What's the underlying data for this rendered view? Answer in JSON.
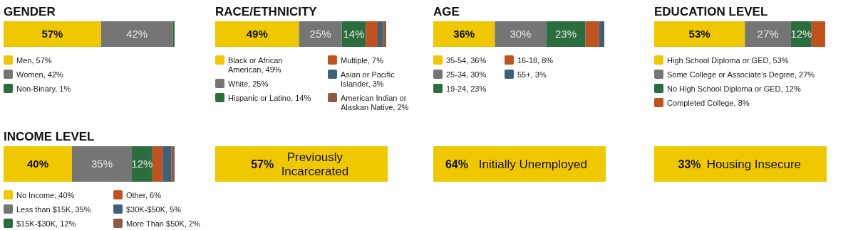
{
  "chart_data": [
    {
      "type": "bar",
      "orientation": "horizontal",
      "stacked": true,
      "title": "GENDER",
      "categories": [
        null
      ],
      "xlim": [
        0,
        100
      ],
      "legend": "bottom",
      "series": [
        {
          "name": "Men, 57%",
          "color": "#f0c800",
          "values": [
            57
          ],
          "value_labels": [
            "57%"
          ]
        },
        {
          "name": "Women, 42%",
          "color": "#757575",
          "values": [
            42
          ],
          "value_labels": [
            "42%"
          ]
        },
        {
          "name": "Non-Binary, 1%",
          "color": "#2a6e3f",
          "values": [
            1
          ],
          "value_labels": [
            null
          ]
        }
      ]
    },
    {
      "type": "bar",
      "orientation": "horizontal",
      "stacked": true,
      "title": "RACE/ETHNICITY",
      "categories": [
        null
      ],
      "xlim": [
        0,
        100
      ],
      "legend": "bottom",
      "series": [
        {
          "name": "Black or African American, 49%",
          "color": "#f0c800",
          "values": [
            49
          ],
          "value_labels": [
            "49%"
          ]
        },
        {
          "name": "White, 25%",
          "color": "#757575",
          "values": [
            25
          ],
          "value_labels": [
            "25%"
          ]
        },
        {
          "name": "Hispanic or Latino, 14%",
          "color": "#2a6e3f",
          "values": [
            14
          ],
          "value_labels": [
            "14%"
          ]
        },
        {
          "name": "Multiple, 7%",
          "color": "#c0521f",
          "values": [
            7
          ],
          "value_labels": [
            null
          ]
        },
        {
          "name": "Asian or Pacific Islander, 3%",
          "color": "#3e6178",
          "values": [
            3
          ],
          "value_labels": [
            null
          ]
        },
        {
          "name": "American Indian or Alaskan Native, 2%",
          "color": "#8e5a44",
          "values": [
            2
          ],
          "value_labels": [
            null
          ]
        }
      ]
    },
    {
      "type": "bar",
      "orientation": "horizontal",
      "stacked": true,
      "title": "AGE",
      "categories": [
        null
      ],
      "xlim": [
        0,
        100
      ],
      "legend": "bottom",
      "series": [
        {
          "name": "35-54, 36%",
          "color": "#f0c800",
          "values": [
            36
          ],
          "value_labels": [
            "36%"
          ]
        },
        {
          "name": "25-34, 30%",
          "color": "#757575",
          "values": [
            30
          ],
          "value_labels": [
            "30%"
          ]
        },
        {
          "name": "19-24, 23%",
          "color": "#2a6e3f",
          "values": [
            23
          ],
          "value_labels": [
            "23%"
          ]
        },
        {
          "name": "16-18, 8%",
          "color": "#c0521f",
          "values": [
            8
          ],
          "value_labels": [
            null
          ]
        },
        {
          "name": "55+, 3%",
          "color": "#3e6178",
          "values": [
            3
          ],
          "value_labels": [
            null
          ]
        }
      ]
    },
    {
      "type": "bar",
      "orientation": "horizontal",
      "stacked": true,
      "title": "EDUCATION LEVEL",
      "categories": [
        null
      ],
      "xlim": [
        0,
        100
      ],
      "legend": "bottom",
      "series": [
        {
          "name": "High School Diploma or GED, 53%",
          "color": "#f0c800",
          "values": [
            53
          ],
          "value_labels": [
            "53%"
          ]
        },
        {
          "name": "Some College or Associate’s Degree, 27%",
          "color": "#757575",
          "values": [
            27
          ],
          "value_labels": [
            "27%"
          ]
        },
        {
          "name": "No High School Diploma or GED, 12%",
          "color": "#2a6e3f",
          "values": [
            12
          ],
          "value_labels": [
            "12%"
          ]
        },
        {
          "name": "Completed College, 8%",
          "color": "#c0521f",
          "values": [
            8
          ],
          "value_labels": [
            null
          ]
        }
      ]
    },
    {
      "type": "bar",
      "orientation": "horizontal",
      "stacked": true,
      "title": "INCOME LEVEL",
      "categories": [
        null
      ],
      "xlim": [
        0,
        100
      ],
      "legend": "bottom",
      "series": [
        {
          "name": "No Income, 40%",
          "color": "#f0c800",
          "values": [
            40
          ],
          "value_labels": [
            "40%"
          ]
        },
        {
          "name": "Less than $15K, 35%",
          "color": "#757575",
          "values": [
            35
          ],
          "value_labels": [
            "35%"
          ]
        },
        {
          "name": "$15K-$30K, 12%",
          "color": "#2a6e3f",
          "values": [
            12
          ],
          "value_labels": [
            "12%"
          ]
        },
        {
          "name": "Other, 6%",
          "color": "#c0521f",
          "values": [
            6
          ],
          "value_labels": [
            null
          ]
        },
        {
          "name": "$30K-$50K, 5%",
          "color": "#3e6178",
          "values": [
            5
          ],
          "value_labels": [
            null
          ]
        },
        {
          "name": "More Than $50K, 2%",
          "color": "#8e5a44",
          "values": [
            2
          ],
          "value_labels": [
            null
          ]
        }
      ]
    },
    {
      "type": "other",
      "color": "#f0c800",
      "annotations": [
        "57%",
        "Previously Incarcerated"
      ]
    },
    {
      "type": "other",
      "color": "#f0c800",
      "annotations": [
        "64%",
        "Initially Unemployed"
      ]
    },
    {
      "type": "other",
      "color": "#f0c800",
      "annotations": [
        "33%",
        "Housing Insecure"
      ]
    }
  ]
}
